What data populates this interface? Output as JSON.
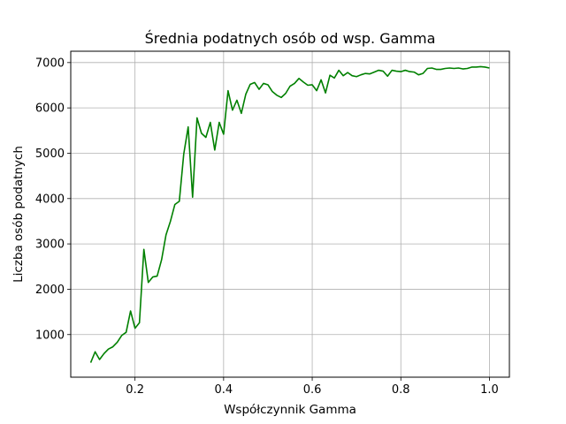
{
  "chart_data": {
    "type": "line",
    "title": "Średnia podatnych osób od wsp. Gamma",
    "xlabel": "Współczynnik Gamma",
    "ylabel": "Liczba osób podatnych",
    "xlim": [
      0.055,
      1.045
    ],
    "ylim": [
      60,
      7250
    ],
    "xticks": [
      0.2,
      0.4,
      0.6,
      0.8,
      1.0
    ],
    "xtick_labels": [
      "0.2",
      "0.4",
      "0.6",
      "0.8",
      "1.0"
    ],
    "yticks": [
      1000,
      2000,
      3000,
      4000,
      5000,
      6000,
      7000
    ],
    "ytick_labels": [
      "1000",
      "2000",
      "3000",
      "4000",
      "5000",
      "6000",
      "7000"
    ],
    "grid": true,
    "series": [
      {
        "color": "#008000",
        "x": [
          0.1,
          0.11,
          0.12,
          0.13,
          0.14,
          0.15,
          0.16,
          0.17,
          0.18,
          0.19,
          0.2,
          0.21,
          0.22,
          0.23,
          0.24,
          0.25,
          0.26,
          0.27,
          0.28,
          0.29,
          0.3,
          0.31,
          0.32,
          0.33,
          0.34,
          0.35,
          0.36,
          0.37,
          0.38,
          0.39,
          0.4,
          0.41,
          0.42,
          0.43,
          0.44,
          0.45,
          0.46,
          0.47,
          0.48,
          0.49,
          0.5,
          0.51,
          0.52,
          0.53,
          0.54,
          0.55,
          0.56,
          0.57,
          0.58,
          0.59,
          0.6,
          0.61,
          0.62,
          0.63,
          0.64,
          0.65,
          0.66,
          0.67,
          0.68,
          0.69,
          0.7,
          0.71,
          0.72,
          0.73,
          0.74,
          0.75,
          0.76,
          0.77,
          0.78,
          0.79,
          0.8,
          0.81,
          0.82,
          0.83,
          0.84,
          0.85,
          0.86,
          0.87,
          0.88,
          0.89,
          0.9,
          0.91,
          0.92,
          0.93,
          0.94,
          0.95,
          0.96,
          0.97,
          0.98,
          0.99,
          1.0
        ],
        "y": [
          380,
          620,
          450,
          580,
          680,
          730,
          830,
          980,
          1050,
          1520,
          1140,
          1260,
          2880,
          2150,
          2270,
          2290,
          2650,
          3200,
          3500,
          3870,
          3940,
          4980,
          5580,
          4030,
          5780,
          5440,
          5350,
          5680,
          5070,
          5680,
          5420,
          6380,
          5950,
          6170,
          5880,
          6300,
          6520,
          6560,
          6410,
          6540,
          6510,
          6360,
          6280,
          6230,
          6320,
          6480,
          6540,
          6650,
          6570,
          6500,
          6510,
          6380,
          6620,
          6330,
          6720,
          6660,
          6830,
          6710,
          6780,
          6710,
          6690,
          6730,
          6760,
          6750,
          6790,
          6830,
          6810,
          6700,
          6830,
          6810,
          6800,
          6830,
          6800,
          6790,
          6730,
          6760,
          6870,
          6880,
          6850,
          6850,
          6870,
          6880,
          6870,
          6880,
          6860,
          6870,
          6900,
          6900,
          6910,
          6900,
          6880
        ]
      }
    ]
  }
}
